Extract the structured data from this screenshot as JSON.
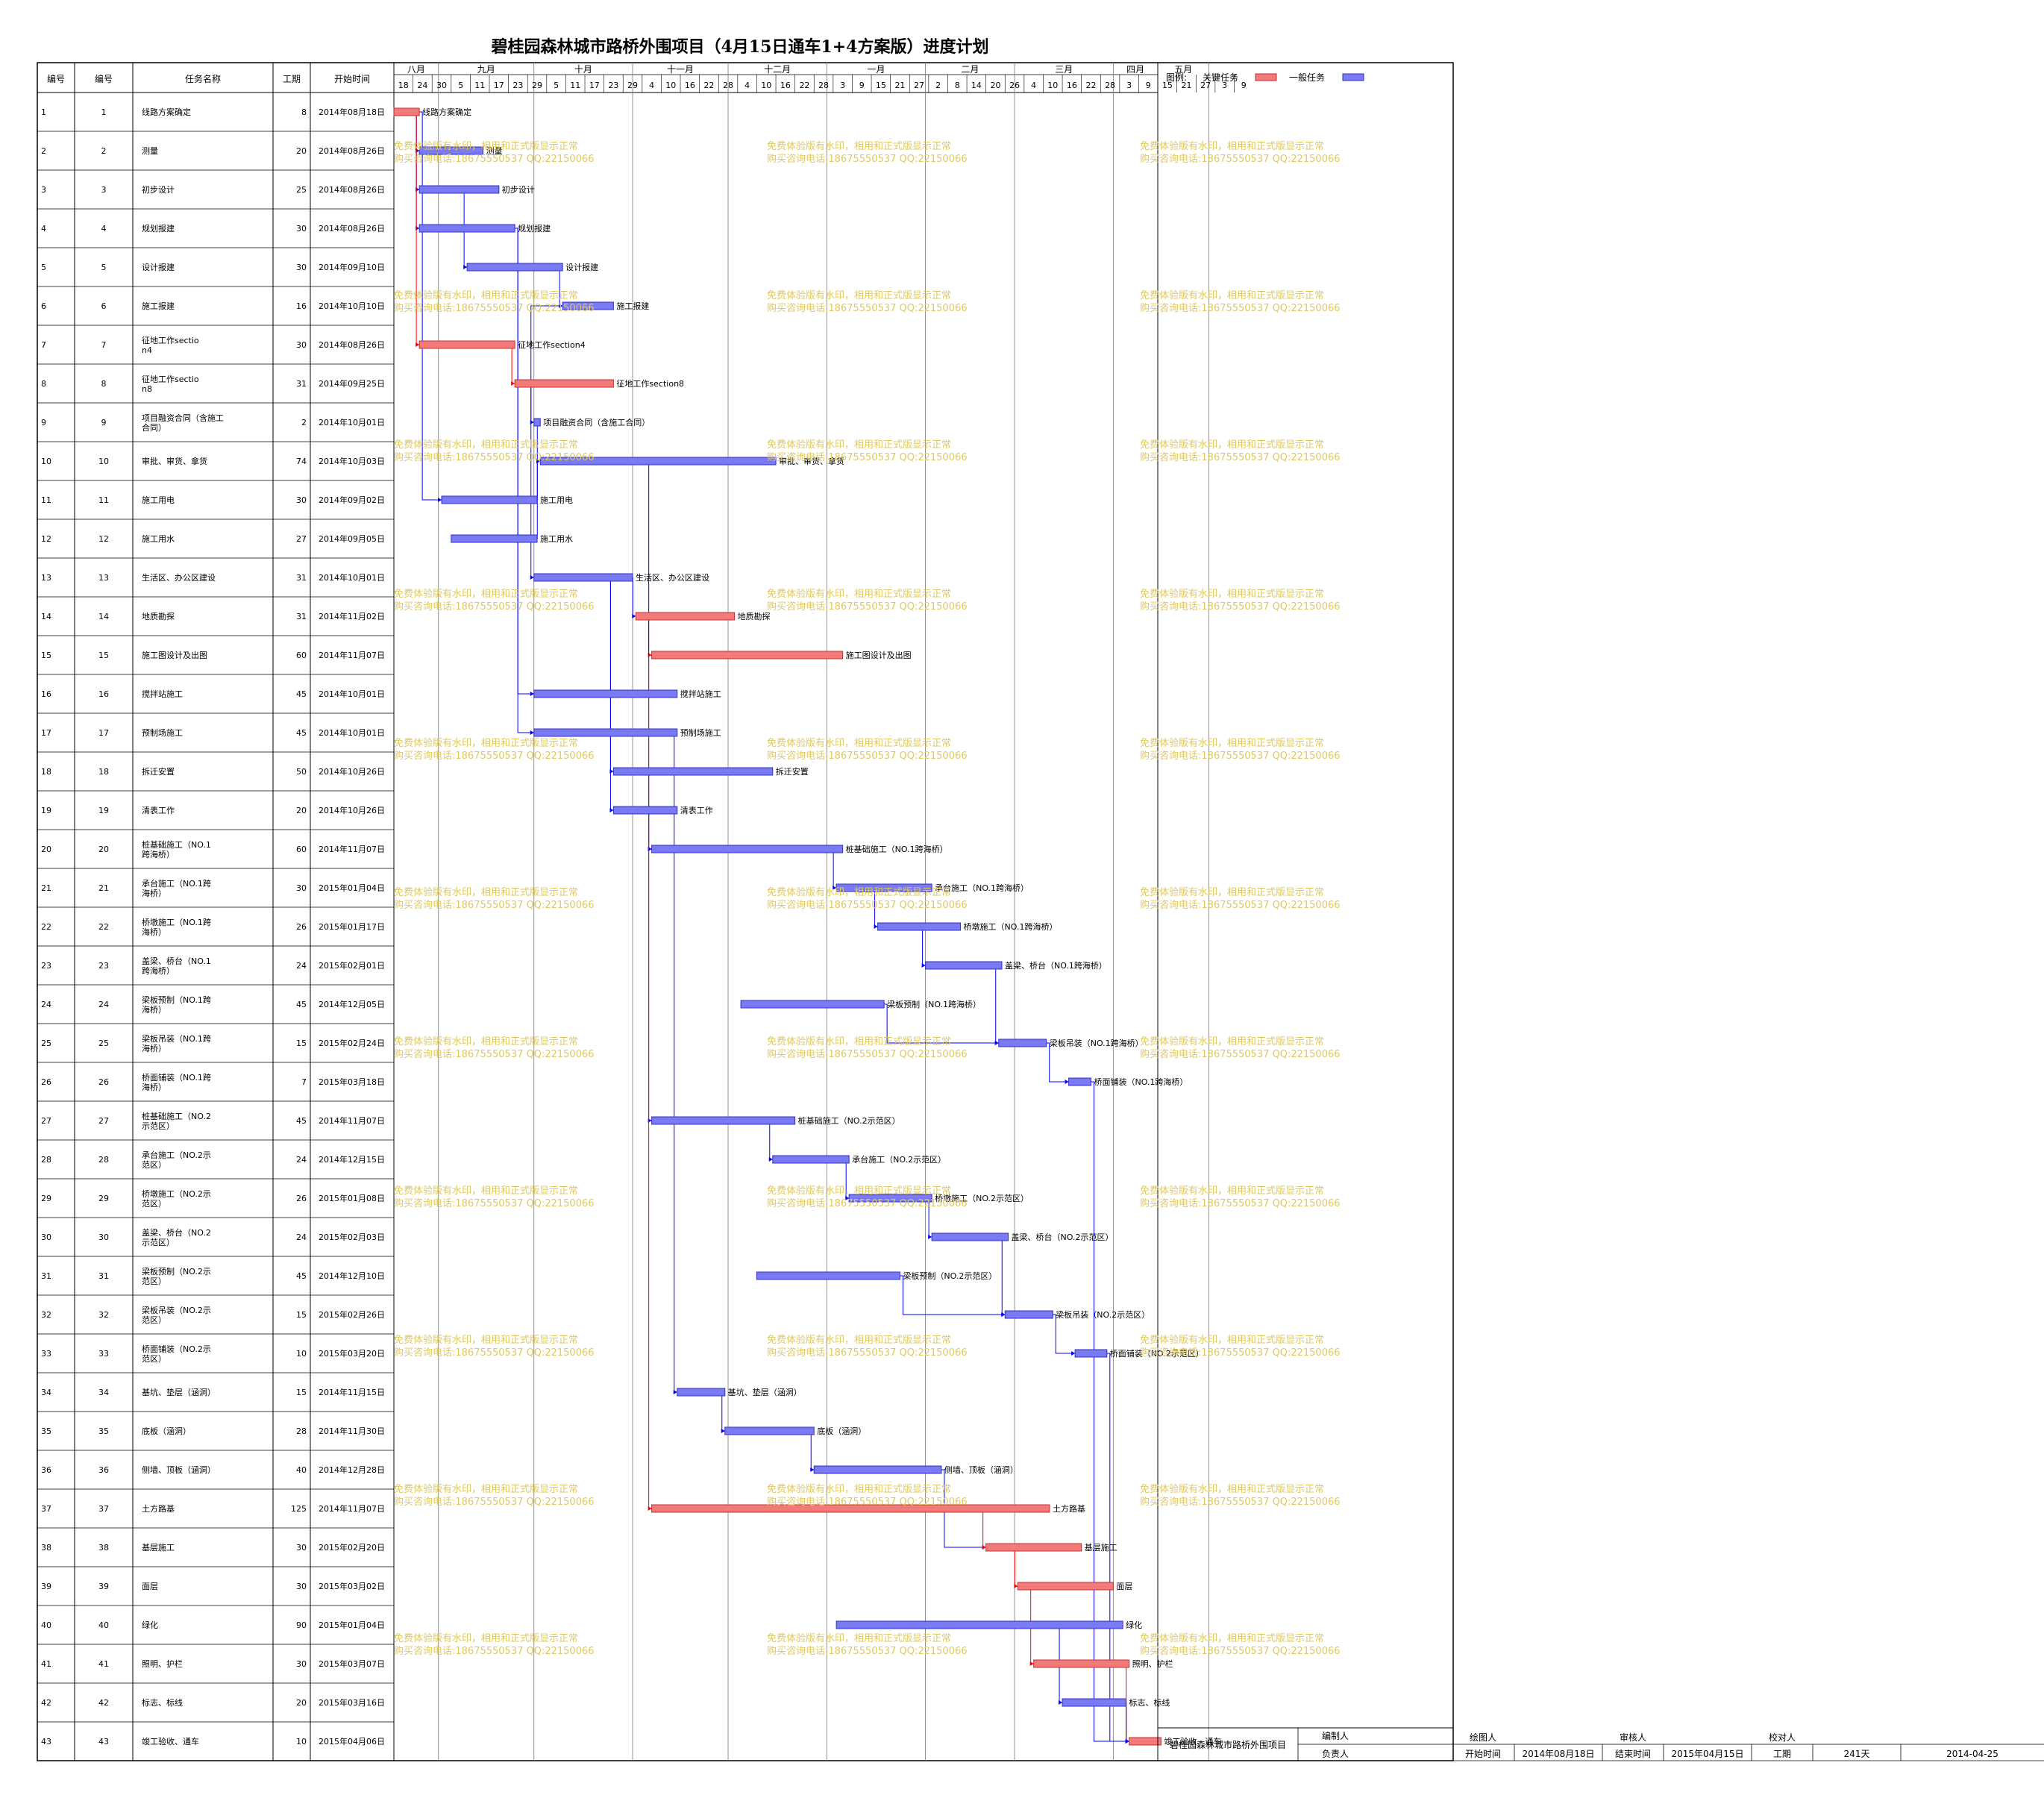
{
  "chart_data": {
    "type": "gantt",
    "title": "碧桂园森林城市路桥外围项目（4月15日通车1+4方案版）进度计划",
    "columns": [
      "编号",
      "编号",
      "任务名称",
      "工期",
      "开始时间"
    ],
    "months": [
      {
        "label": "八月",
        "days": [
          "18",
          "24"
        ]
      },
      {
        "label": "九月",
        "days": [
          "30",
          "5",
          "11",
          "17",
          "23"
        ]
      },
      {
        "label": "十月",
        "days": [
          "29",
          "5",
          "11",
          "17",
          "23",
          "29"
        ]
      },
      {
        "label": "十一月",
        "days": [
          "4",
          "10",
          "16",
          "22",
          "28"
        ]
      },
      {
        "label": "十二月",
        "days": [
          "4",
          "10",
          "16",
          "22",
          "28"
        ]
      },
      {
        "label": "一月",
        "days": [
          "3",
          "9",
          "15",
          "21",
          "27"
        ]
      },
      {
        "label": "二月",
        "days": [
          "2",
          "8",
          "14",
          "20",
          "26"
        ]
      },
      {
        "label": "三月",
        "days": [
          "4",
          "10",
          "16",
          "22",
          "28"
        ]
      },
      {
        "label": "四月",
        "days": [
          "3",
          "9",
          "15",
          "21",
          "27"
        ]
      },
      {
        "label": "五月",
        "days": [
          "3",
          "9"
        ]
      }
    ],
    "legend": {
      "label": "图例:",
      "critical": "关键任务",
      "normal": "一般任务"
    },
    "colors": {
      "critical": "#f47a7a",
      "normal": "#7a7af4",
      "critical_border": "#c03030",
      "normal_border": "#3030c0",
      "link": "#0000ff",
      "critical_link": "#ff0000",
      "watermark": "#e0c860"
    },
    "watermark": [
      "免费体验版有水印，相用和正式版显示正常",
      "购买咨询电话:18675550537 QQ:22150066"
    ],
    "tasks": [
      {
        "id": "1",
        "no": "1",
        "name": "线路方案确定",
        "dur": 8,
        "start": "2014年08月18日",
        "crit": true
      },
      {
        "id": "2",
        "no": "2",
        "name": "测量",
        "dur": 20,
        "start": "2014年08月26日",
        "crit": false
      },
      {
        "id": "3",
        "no": "3",
        "name": "初步设计",
        "dur": 25,
        "start": "2014年08月26日",
        "crit": false
      },
      {
        "id": "4",
        "no": "4",
        "name": "规划报建",
        "dur": 30,
        "start": "2014年08月26日",
        "crit": false
      },
      {
        "id": "5",
        "no": "5",
        "name": "设计报建",
        "dur": 30,
        "start": "2014年09月10日",
        "crit": false
      },
      {
        "id": "6",
        "no": "6",
        "name": "施工报建",
        "dur": 16,
        "start": "2014年10月10日",
        "crit": false
      },
      {
        "id": "7",
        "no": "7",
        "name": "征地工作section4",
        "dur": 30,
        "start": "2014年08月26日",
        "crit": true
      },
      {
        "id": "8",
        "no": "8",
        "name": "征地工作section8",
        "dur": 31,
        "start": "2014年09月25日",
        "crit": true
      },
      {
        "id": "9",
        "no": "9",
        "name": "项目融资合同（含施工合同）",
        "dur": 2,
        "start": "2014年10月01日",
        "crit": false
      },
      {
        "id": "10",
        "no": "10",
        "name": "审批、审货、拿货",
        "dur": 74,
        "start": "2014年10月03日",
        "crit": false
      },
      {
        "id": "11",
        "no": "11",
        "name": "施工用电",
        "dur": 30,
        "start": "2014年09月02日",
        "crit": false
      },
      {
        "id": "12",
        "no": "12",
        "name": "施工用水",
        "dur": 27,
        "start": "2014年09月05日",
        "crit": false
      },
      {
        "id": "13",
        "no": "13",
        "name": "生活区、办公区建设",
        "dur": 31,
        "start": "2014年10月01日",
        "crit": false
      },
      {
        "id": "14",
        "no": "14",
        "name": "地质勘探",
        "dur": 31,
        "start": "2014年11月02日",
        "crit": true
      },
      {
        "id": "15",
        "no": "15",
        "name": "施工图设计及出图",
        "dur": 60,
        "start": "2014年11月07日",
        "crit": true
      },
      {
        "id": "16",
        "no": "16",
        "name": "搅拌站施工",
        "dur": 45,
        "start": "2014年10月01日",
        "crit": false
      },
      {
        "id": "17",
        "no": "17",
        "name": "预制场施工",
        "dur": 45,
        "start": "2014年10月01日",
        "crit": false
      },
      {
        "id": "18",
        "no": "18",
        "name": "拆迁安置",
        "dur": 50,
        "start": "2014年10月26日",
        "crit": false
      },
      {
        "id": "19",
        "no": "19",
        "name": "清表工作",
        "dur": 20,
        "start": "2014年10月26日",
        "crit": false
      },
      {
        "id": "20",
        "no": "20",
        "name": "桩基础施工（NO.1跨海桥）",
        "dur": 60,
        "start": "2014年11月07日",
        "crit": false
      },
      {
        "id": "21",
        "no": "21",
        "name": "承台施工（NO.1跨海桥）",
        "dur": 30,
        "start": "2015年01月04日",
        "crit": false
      },
      {
        "id": "22",
        "no": "22",
        "name": "桥墩施工（NO.1跨海桥）",
        "dur": 26,
        "start": "2015年01月17日",
        "crit": false
      },
      {
        "id": "23",
        "no": "23",
        "name": "盖梁、桥台（NO.1跨海桥）",
        "dur": 24,
        "start": "2015年02月01日",
        "crit": false
      },
      {
        "id": "24",
        "no": "24",
        "name": "梁板预制（NO.1跨海桥）",
        "dur": 45,
        "start": "2014年12月05日",
        "crit": false
      },
      {
        "id": "25",
        "no": "25",
        "name": "梁板吊装（NO.1跨海桥）",
        "dur": 15,
        "start": "2015年02月24日",
        "crit": false
      },
      {
        "id": "26",
        "no": "26",
        "name": "桥面铺装（NO.1跨海桥）",
        "dur": 7,
        "start": "2015年03月18日",
        "crit": false
      },
      {
        "id": "27",
        "no": "27",
        "name": "桩基础施工（NO.2示范区）",
        "dur": 45,
        "start": "2014年11月07日",
        "crit": false
      },
      {
        "id": "28",
        "no": "28",
        "name": "承台施工（NO.2示范区）",
        "dur": 24,
        "start": "2014年12月15日",
        "crit": false
      },
      {
        "id": "29",
        "no": "29",
        "name": "桥墩施工（NO.2示范区）",
        "dur": 26,
        "start": "2015年01月08日",
        "crit": false
      },
      {
        "id": "30",
        "no": "30",
        "name": "盖梁、桥台（NO.2示范区）",
        "dur": 24,
        "start": "2015年02月03日",
        "crit": false
      },
      {
        "id": "31",
        "no": "31",
        "name": "梁板预制（NO.2示范区）",
        "dur": 45,
        "start": "2014年12月10日",
        "crit": false
      },
      {
        "id": "32",
        "no": "32",
        "name": "梁板吊装（NO.2示范区）",
        "dur": 15,
        "start": "2015年02月26日",
        "crit": false
      },
      {
        "id": "33",
        "no": "33",
        "name": "桥面铺装（NO.2示范区）",
        "dur": 10,
        "start": "2015年03月20日",
        "crit": false
      },
      {
        "id": "34",
        "no": "34",
        "name": "基坑、垫层（涵洞）",
        "dur": 15,
        "start": "2014年11月15日",
        "crit": false
      },
      {
        "id": "35",
        "no": "35",
        "name": "底板（涵洞）",
        "dur": 28,
        "start": "2014年11月30日",
        "crit": false
      },
      {
        "id": "36",
        "no": "36",
        "name": "侧墙、顶板（涵洞）",
        "dur": 40,
        "start": "2014年12月28日",
        "crit": false
      },
      {
        "id": "37",
        "no": "37",
        "name": "土方路基",
        "dur": 125,
        "start": "2014年11月07日",
        "crit": true
      },
      {
        "id": "38",
        "no": "38",
        "name": "基层施工",
        "dur": 30,
        "start": "2015年02月20日",
        "crit": true
      },
      {
        "id": "39",
        "no": "39",
        "name": "面层",
        "dur": 30,
        "start": "2015年03月02日",
        "crit": true
      },
      {
        "id": "40",
        "no": "40",
        "name": "绿化",
        "dur": 90,
        "start": "2015年01月04日",
        "crit": false
      },
      {
        "id": "41",
        "no": "41",
        "name": "照明、护栏",
        "dur": 30,
        "start": "2015年03月07日",
        "crit": true
      },
      {
        "id": "42",
        "no": "42",
        "name": "标志、标线",
        "dur": 20,
        "start": "2015年03月16日",
        "crit": false
      },
      {
        "id": "43",
        "no": "43",
        "name": "竣工验收、通车",
        "dur": 10,
        "start": "2015年04月06日",
        "crit": true
      }
    ],
    "links": [
      [
        1,
        2
      ],
      [
        1,
        3
      ],
      [
        1,
        4
      ],
      [
        1,
        7
      ],
      [
        1,
        11
      ],
      [
        3,
        5
      ],
      [
        5,
        6
      ],
      [
        7,
        8
      ],
      [
        8,
        9
      ],
      [
        9,
        10
      ],
      [
        11,
        10
      ],
      [
        12,
        10
      ],
      [
        6,
        13
      ],
      [
        13,
        14
      ],
      [
        14,
        15
      ],
      [
        10,
        20
      ],
      [
        4,
        16
      ],
      [
        4,
        17
      ],
      [
        13,
        18
      ],
      [
        13,
        19
      ],
      [
        19,
        20
      ],
      [
        20,
        21
      ],
      [
        21,
        22
      ],
      [
        22,
        23
      ],
      [
        23,
        25
      ],
      [
        24,
        25
      ],
      [
        25,
        26
      ],
      [
        18,
        27
      ],
      [
        27,
        28
      ],
      [
        28,
        29
      ],
      [
        29,
        30
      ],
      [
        30,
        32
      ],
      [
        31,
        32
      ],
      [
        32,
        33
      ],
      [
        17,
        34
      ],
      [
        34,
        35
      ],
      [
        35,
        36
      ],
      [
        15,
        37
      ],
      [
        36,
        38
      ],
      [
        37,
        38
      ],
      [
        38,
        39
      ],
      [
        39,
        41
      ],
      [
        40,
        42
      ],
      [
        26,
        43
      ],
      [
        33,
        43
      ],
      [
        41,
        43
      ],
      [
        42,
        43
      ]
    ],
    "footer": {
      "project": "碧桂园森林城市路桥外围项目",
      "labels": {
        "edit": "编制人",
        "owner": "负责人",
        "draw": "绘图人",
        "review": "审核人",
        "check": "校对人",
        "start": "开始时间",
        "end": "结束时间",
        "duration": "工期"
      },
      "start": "2014年08月18日",
      "end": "2015年04月15日",
      "duration": "241天",
      "date": "2014-04-25"
    }
  }
}
